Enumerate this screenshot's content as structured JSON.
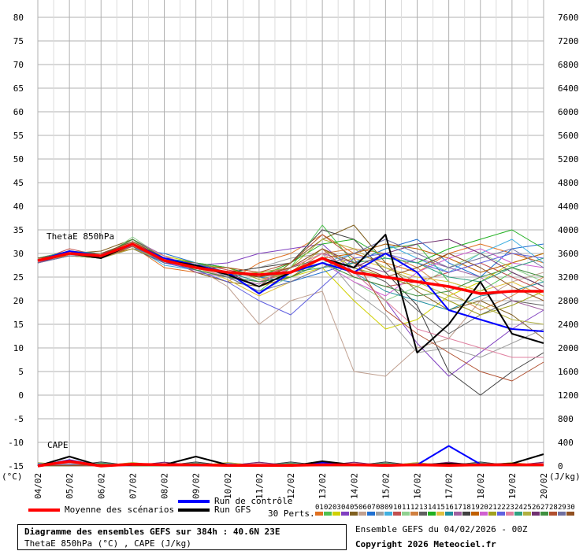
{
  "chart_data": {
    "type": "line",
    "title": "Diagramme des ensembles GEFS sur 384h : 40.6N 23E",
    "subtitle": "ThetaE 850hPa (°C) , CAPE (J/kg)",
    "left_axis": {
      "unit": "(°C)",
      "min": -15,
      "max": 80,
      "ticks": [
        80,
        75,
        70,
        65,
        60,
        55,
        50,
        45,
        40,
        35,
        30,
        25,
        20,
        15,
        10,
        5,
        0,
        -5,
        -10,
        -15
      ]
    },
    "right_axis": {
      "unit": "(J/kg)",
      "min": 0,
      "max": 7600,
      "ticks": [
        7600,
        7200,
        6800,
        6400,
        6000,
        5600,
        5200,
        4800,
        4400,
        4000,
        3600,
        3200,
        2800,
        2400,
        2000,
        1600,
        1200,
        800,
        400,
        0
      ]
    },
    "x_labels": [
      "04/02",
      "05/02",
      "06/02",
      "07/02",
      "08/02",
      "09/02",
      "10/02",
      "11/02",
      "12/02",
      "13/02",
      "14/02",
      "15/02",
      "16/02",
      "17/02",
      "18/02",
      "19/02",
      "20/02"
    ],
    "panel_labels": {
      "thetae": "ThetaE 850hPa",
      "cape": "CAPE"
    },
    "mean_thetae": [
      28.5,
      30,
      29.5,
      32,
      28.5,
      27,
      26,
      25.5,
      26,
      29,
      26,
      25,
      24,
      23,
      21.5,
      22,
      22
    ],
    "control_thetae": [
      28.5,
      30.5,
      29.5,
      32,
      29,
      27.5,
      26,
      21.5,
      26,
      28,
      26,
      30,
      26,
      18,
      16,
      14,
      13.5
    ],
    "gfs_thetae": [
      28.5,
      30,
      29,
      32,
      28.5,
      27.5,
      25.5,
      23,
      26,
      29,
      27,
      34,
      9,
      15,
      24,
      13,
      11
    ],
    "mean_cape": [
      0,
      80,
      0,
      30,
      20,
      20,
      10,
      10,
      10,
      20,
      20,
      10,
      20,
      10,
      20,
      20,
      20
    ],
    "control_cape": [
      0,
      100,
      0,
      20,
      20,
      10,
      10,
      0,
      0,
      60,
      20,
      0,
      20,
      340,
      30,
      20,
      20
    ],
    "gfs_cape": [
      0,
      160,
      0,
      20,
      20,
      160,
      20,
      20,
      0,
      80,
      20,
      20,
      20,
      40,
      20,
      40,
      200
    ],
    "members": [
      [
        28.5,
        30,
        29.5,
        31.5,
        27,
        26,
        24,
        28,
        30,
        34,
        30,
        28,
        26,
        30,
        32,
        30,
        28
      ],
      [
        28,
        30.5,
        29,
        33,
        28,
        27,
        25,
        22,
        27,
        36,
        28,
        31,
        32,
        24,
        22,
        26,
        23
      ],
      [
        29,
        30,
        30,
        32,
        29.5,
        28,
        27,
        26,
        25,
        27,
        20,
        14,
        16,
        21,
        24,
        28,
        30
      ],
      [
        28.5,
        29.5,
        29,
        31,
        28.5,
        27.5,
        28,
        30,
        31,
        32,
        26,
        20,
        11,
        4,
        9,
        14,
        18
      ],
      [
        28,
        30,
        30.5,
        33,
        29,
        26,
        24,
        23,
        28,
        33,
        36,
        28,
        22,
        18,
        20,
        17,
        12
      ],
      [
        29,
        30.5,
        29,
        32,
        28,
        27,
        23,
        15,
        20,
        22,
        5,
        4,
        10,
        12,
        20,
        24,
        26
      ],
      [
        28.5,
        30,
        29.5,
        31,
        30,
        28,
        27,
        25,
        24,
        26,
        28,
        31,
        33,
        28,
        25,
        31,
        32
      ],
      [
        28,
        29.5,
        29,
        32.5,
        28.5,
        27,
        26,
        27,
        29,
        30,
        22,
        17,
        9,
        10,
        8,
        11,
        14
      ],
      [
        29,
        30,
        30,
        31.5,
        27.5,
        26.5,
        25,
        24,
        26,
        28,
        30,
        32,
        29,
        26,
        30,
        33,
        28
      ],
      [
        28.5,
        31,
        29.5,
        32,
        28,
        28,
        26.5,
        25.5,
        27,
        31,
        25,
        23,
        24,
        26,
        28,
        25,
        22
      ],
      [
        28,
        30,
        29,
        33.5,
        29,
        27,
        25,
        22,
        25,
        28,
        24,
        20,
        23,
        27,
        30,
        27,
        24
      ],
      [
        29,
        30.5,
        30,
        32,
        28.5,
        27.5,
        26,
        24,
        26,
        30,
        31,
        30,
        27,
        22,
        18,
        21,
        25
      ],
      [
        28.5,
        29.5,
        29.5,
        31,
        28,
        26.5,
        25,
        26,
        27,
        29,
        27,
        24,
        18,
        13,
        17,
        20,
        19
      ],
      [
        28,
        30,
        29,
        32,
        29,
        28,
        27,
        25,
        28,
        32,
        33,
        29,
        28,
        31,
        33,
        35,
        31
      ],
      [
        29,
        30,
        29.5,
        32.5,
        28.5,
        27,
        24.5,
        21,
        24,
        27,
        29,
        27,
        25,
        24,
        22,
        24,
        21
      ],
      [
        28.5,
        30.5,
        30,
        31.5,
        28,
        27.5,
        26,
        24,
        25,
        28,
        26,
        22,
        20,
        18,
        21,
        22,
        24
      ],
      [
        28,
        29.5,
        29,
        33,
        29.5,
        26,
        25,
        23.5,
        27,
        30,
        28,
        26,
        29,
        27,
        25,
        20,
        18
      ],
      [
        29,
        30,
        30,
        32,
        28,
        27,
        26,
        27,
        28,
        35,
        33,
        26,
        19,
        5,
        0,
        5,
        9
      ],
      [
        28.5,
        30,
        29.5,
        31,
        28.5,
        28,
        25.5,
        23,
        25,
        29,
        30,
        32,
        31,
        29,
        26,
        28,
        30
      ],
      [
        28,
        30.5,
        29,
        32,
        28,
        27,
        26,
        25,
        26,
        28,
        24,
        21,
        26,
        29,
        31,
        28,
        27
      ],
      [
        29,
        29.5,
        29.5,
        33,
        29,
        27.5,
        27,
        24.5,
        26,
        31,
        27,
        25,
        23,
        20,
        17,
        19,
        22
      ],
      [
        28.5,
        30,
        30,
        31.5,
        28,
        26.5,
        24,
        20,
        17,
        23,
        29,
        30,
        28,
        26,
        28,
        30,
        29
      ],
      [
        28,
        30,
        29,
        32.5,
        29.5,
        27,
        25,
        24,
        27,
        30,
        26,
        20,
        14,
        12,
        10,
        8,
        8
      ],
      [
        29,
        30.5,
        29.5,
        32,
        28,
        28,
        26,
        25,
        26,
        27,
        28,
        29,
        28,
        25,
        24,
        27,
        29
      ],
      [
        28.5,
        29.5,
        29,
        31,
        28.5,
        27,
        25.5,
        26,
        27,
        33,
        31,
        27,
        24,
        21,
        19,
        16,
        15
      ],
      [
        28,
        30,
        30,
        32,
        28,
        27.5,
        26,
        23,
        26,
        29,
        27,
        30,
        32,
        33,
        30,
        26,
        23
      ],
      [
        29,
        30,
        29.5,
        33,
        29,
        26.5,
        25,
        24,
        25,
        28,
        25,
        23,
        21,
        22,
        25,
        27,
        25
      ],
      [
        28.5,
        30.5,
        29,
        31.5,
        28.5,
        27,
        27,
        26,
        28,
        34,
        29,
        18,
        13,
        9,
        5,
        3,
        7
      ],
      [
        28,
        29.5,
        29.5,
        32,
        28,
        28,
        25,
        22,
        24,
        27,
        30,
        33,
        30,
        27,
        29,
        31,
        27
      ],
      [
        29,
        30,
        30,
        32.5,
        29,
        27,
        26,
        25,
        27,
        31,
        28,
        25,
        27,
        30,
        27,
        23,
        20
      ]
    ],
    "member_colors": [
      "#e07020",
      "#50c050",
      "#d0d000",
      "#8040c0",
      "#806020",
      "#c0a090",
      "#2070d0",
      "#a0a0a0",
      "#40b0e0",
      "#c05050",
      "#90d090",
      "#d08040",
      "#606060",
      "#20b020",
      "#e0c040",
      "#2090a0",
      "#a060a0",
      "#404040",
      "#c06000",
      "#d060d0",
      "#a0a020",
      "#6060e0",
      "#e080a0",
      "#30a080",
      "#b0b040",
      "#703070",
      "#409040",
      "#b05030",
      "#7070a0",
      "#905020"
    ],
    "legend": {
      "mean": "Moyenne des scénarios",
      "control": "Run de contrôle",
      "gfs": "Run GFS",
      "perts": "30 Perts.",
      "pert_numbers": [
        "01",
        "02",
        "03",
        "04",
        "05",
        "06",
        "07",
        "08",
        "09",
        "10",
        "11",
        "12",
        "13",
        "14",
        "15",
        "16",
        "17",
        "18",
        "19",
        "20",
        "21",
        "22",
        "23",
        "24",
        "25",
        "26",
        "27",
        "28",
        "29",
        "30"
      ]
    },
    "colors": {
      "mean": "#ff0000",
      "control": "#0000ff",
      "gfs": "#000000",
      "grid": "#b0b0b0"
    }
  },
  "footer": {
    "title": "Diagramme des ensembles GEFS sur 384h : 40.6N 23E",
    "subtitle": "ThetaE 850hPa (°C) , CAPE (J/kg)",
    "run_info": "Ensemble GEFS du 04/02/2026 - 00Z",
    "copyright": "Copyright 2026 Meteociel.fr"
  }
}
